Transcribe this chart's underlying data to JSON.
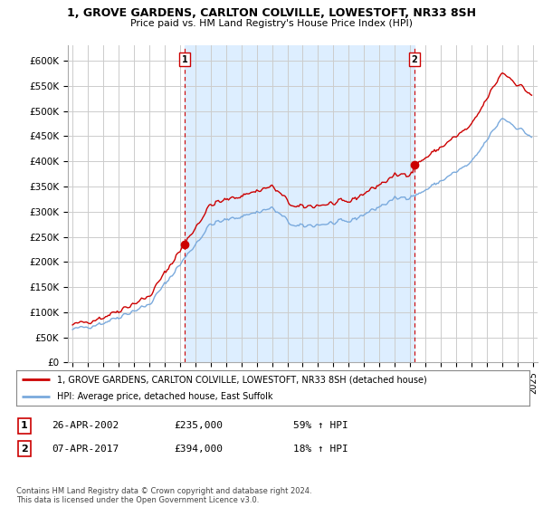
{
  "title_line1": "1, GROVE GARDENS, CARLTON COLVILLE, LOWESTOFT, NR33 8SH",
  "title_line2": "Price paid vs. HM Land Registry's House Price Index (HPI)",
  "ylabel_ticks": [
    "£0",
    "£50K",
    "£100K",
    "£150K",
    "£200K",
    "£250K",
    "£300K",
    "£350K",
    "£400K",
    "£450K",
    "£500K",
    "£550K",
    "£600K"
  ],
  "ytick_values": [
    0,
    50000,
    100000,
    150000,
    200000,
    250000,
    300000,
    350000,
    400000,
    450000,
    500000,
    550000,
    600000
  ],
  "ylim": [
    0,
    630000
  ],
  "sale1_year": 2002.32,
  "sale1_price": 235000,
  "sale1_date": "26-APR-2002",
  "sale1_pct": "59% ↑ HPI",
  "sale2_year": 2017.27,
  "sale2_price": 394000,
  "sale2_date": "07-APR-2017",
  "sale2_pct": "18% ↑ HPI",
  "legend_line1": "1, GROVE GARDENS, CARLTON COLVILLE, LOWESTOFT, NR33 8SH (detached house)",
  "legend_line2": "HPI: Average price, detached house, East Suffolk",
  "footer": "Contains HM Land Registry data © Crown copyright and database right 2024.\nThis data is licensed under the Open Government Licence v3.0.",
  "line_color_red": "#cc0000",
  "line_color_blue": "#7aaadd",
  "shade_color": "#ddeeff",
  "vline_color": "#cc0000",
  "background_color": "#ffffff",
  "grid_color": "#cccccc"
}
